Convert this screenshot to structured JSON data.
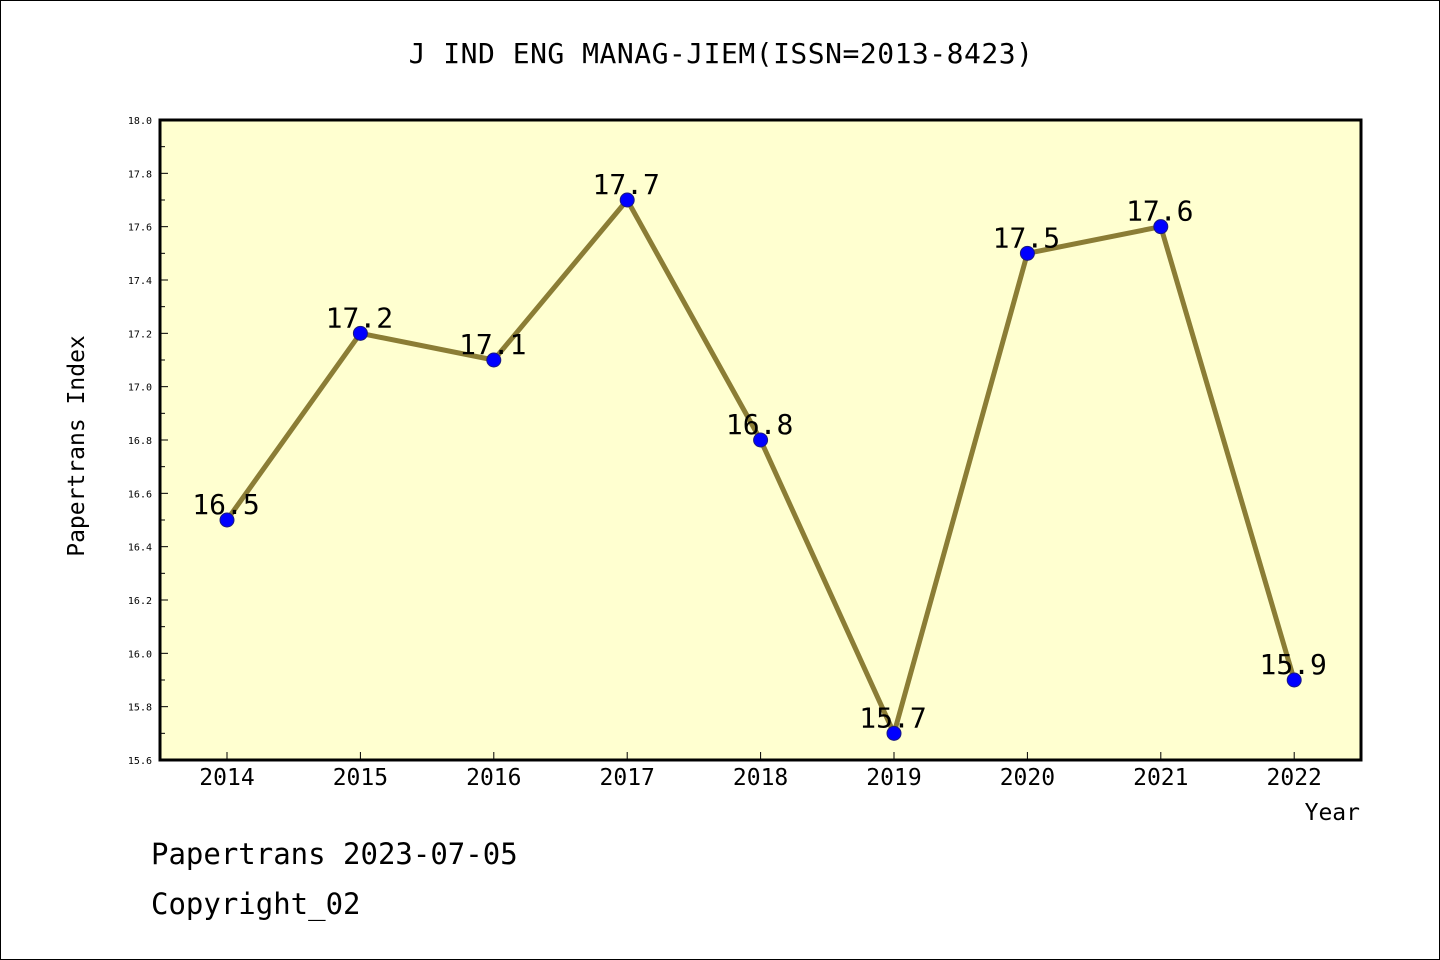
{
  "chart_data": {
    "type": "line",
    "title": "J IND ENG MANAG-JIEM(ISSN=2013-8423)",
    "xlabel": "Year",
    "ylabel": "Papertrans Index",
    "categories": [
      "2014",
      "2015",
      "2016",
      "2017",
      "2018",
      "2019",
      "2020",
      "2021",
      "2022"
    ],
    "series": [
      {
        "values": [
          16.5,
          17.2,
          17.1,
          17.7,
          16.8,
          15.7,
          17.5,
          17.6,
          15.9
        ],
        "data_labels": [
          "16.5",
          "17.2",
          "17.1",
          "17.7",
          "16.8",
          "15.7",
          "17.5",
          "17.6",
          "15.9"
        ],
        "line_color": "#8b7d35",
        "marker_color": "#0000ff"
      }
    ],
    "ylim": [
      15.6,
      18.0
    ],
    "yticks": [
      "15.6",
      "15.8",
      "16.0",
      "16.2",
      "16.4",
      "16.6",
      "16.8",
      "17.0",
      "17.2",
      "17.4",
      "17.6",
      "17.8",
      "18.0"
    ],
    "plot_background": "#ffffd0",
    "grid": false,
    "legend": "none"
  },
  "footer": {
    "line1": "Papertrans 2023-07-05",
    "line2": "Copyright_02"
  }
}
